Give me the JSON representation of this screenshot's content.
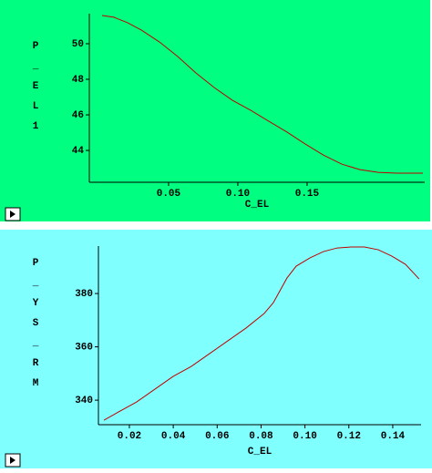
{
  "chart_data": [
    {
      "type": "line",
      "ylabel": "P_EL1",
      "xlabel": "C_EL",
      "background": "#00ff80",
      "color": "#c00000",
      "x": [
        0.002,
        0.0105,
        0.0204,
        0.0303,
        0.0434,
        0.0566,
        0.0697,
        0.0829,
        0.0961,
        0.1092,
        0.1224,
        0.1355,
        0.1487,
        0.1618,
        0.175,
        0.1882,
        0.2013,
        0.2145,
        0.2336
      ],
      "values": [
        51.59,
        51.49,
        51.18,
        50.77,
        50.1,
        49.28,
        48.36,
        47.54,
        46.82,
        46.26,
        45.64,
        45.03,
        44.36,
        43.74,
        43.23,
        42.92,
        42.77,
        42.72,
        42.72
      ],
      "xlim": [
        -0.0072,
        0.2349
      ],
      "ylim": [
        42.21,
        51.69
      ],
      "xticks": [
        0.05,
        {
          "value": 0.1,
          "label": "0.10"
        },
        0.15
      ],
      "yticks": [
        44,
        46,
        48,
        50
      ]
    },
    {
      "type": "line",
      "ylabel": "P_YS_RM",
      "xlabel": "C_EL",
      "background": "#80ffff",
      "color": "#c00000",
      "x": [
        0.0084,
        0.015,
        0.0233,
        0.0316,
        0.0399,
        0.0482,
        0.0565,
        0.0648,
        0.0731,
        0.0814,
        0.0856,
        0.0918,
        0.096,
        0.1022,
        0.1084,
        0.1147,
        0.1209,
        0.1271,
        0.1334,
        0.1396,
        0.1458,
        0.152
      ],
      "values": [
        332.48,
        335.56,
        339.32,
        344.1,
        348.89,
        352.65,
        357.44,
        362.22,
        367.01,
        372.48,
        376.58,
        385.81,
        390.26,
        393.33,
        395.73,
        397.09,
        397.44,
        397.44,
        396.41,
        394.02,
        390.94,
        385.47
      ],
      "xlim": [
        0.0059,
        0.1529
      ],
      "ylim": [
        330.8,
        397.8
      ],
      "xticks": [
        0.02,
        0.04,
        0.06,
        0.08,
        {
          "value": 0.1,
          "label": "0.10"
        },
        0.12,
        0.14
      ],
      "yticks": [
        340,
        360,
        380
      ]
    }
  ]
}
